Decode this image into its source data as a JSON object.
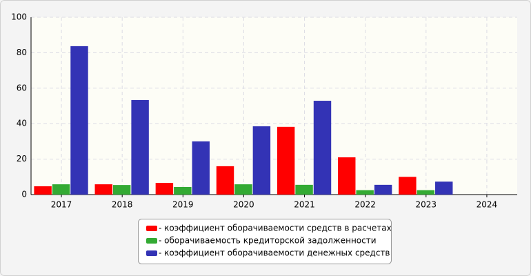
{
  "chart_data": {
    "type": "bar",
    "categories": [
      "2017",
      "2018",
      "2019",
      "2020",
      "2021",
      "2022",
      "2023",
      "2024"
    ],
    "series": [
      {
        "name": "- коэффициент оборачиваемости средств в расчетах",
        "color": "#ff0000",
        "values": [
          4.7,
          5.8,
          6.6,
          16,
          38.2,
          21,
          10,
          null
        ]
      },
      {
        "name": "- оборачиваемость кредиторской задолженности",
        "color": "#33aa33",
        "values": [
          5.8,
          5.4,
          4.3,
          5.8,
          5.5,
          2.5,
          2.5,
          null
        ]
      },
      {
        "name": "- коэффициент оборачиваемости денежных средств",
        "color": "#3333b5",
        "values": [
          83.7,
          53.3,
          30,
          38.5,
          52.9,
          5.5,
          7.3,
          null
        ]
      }
    ],
    "ylim": [
      0,
      100
    ],
    "yticks": [
      0,
      20,
      40,
      60,
      80,
      100
    ],
    "grid": true,
    "legend": "bottom"
  }
}
